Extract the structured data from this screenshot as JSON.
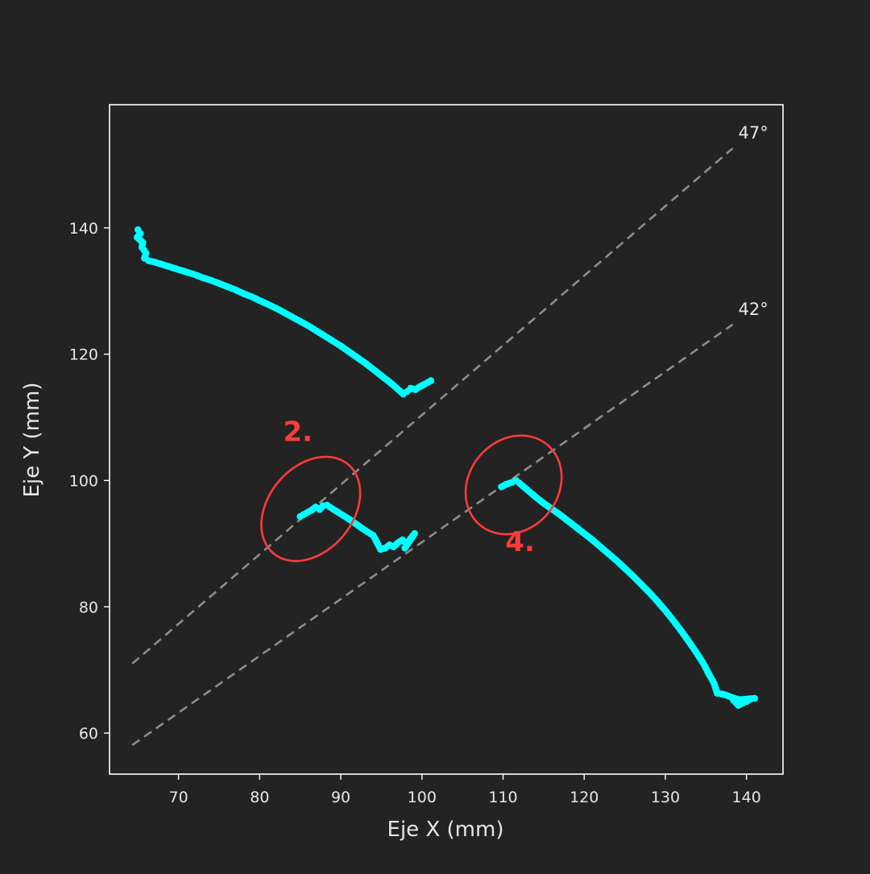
{
  "colors": {
    "background": "#232323",
    "frame": "#ffffff",
    "series": "#00ffff",
    "reference_line": "#8c8c8c",
    "annotation": "#ff3b3b",
    "text": "#e6e6e6"
  },
  "chart_data": {
    "type": "scatter",
    "title": "",
    "xlabel": "Eje X (mm)",
    "ylabel": "Eje Y (mm)",
    "xlim": [
      61.5,
      144.5
    ],
    "ylim": [
      53.5,
      159.5
    ],
    "xticks": [
      70,
      80,
      90,
      100,
      110,
      120,
      130,
      140
    ],
    "yticks": [
      60,
      80,
      100,
      120,
      140
    ],
    "grid": false,
    "legend": "none",
    "marker_color": "#00ffff",
    "series": [
      {
        "points": [
          [
            65.0,
            139.7
          ],
          [
            65.3,
            139.1
          ],
          [
            64.9,
            138.5
          ],
          [
            65.6,
            137.7
          ],
          [
            65.5,
            136.9
          ],
          [
            66.0,
            136.0
          ],
          [
            65.8,
            135.2
          ],
          [
            66.3,
            134.8
          ],
          [
            67.0,
            134.6
          ],
          [
            68.0,
            134.2
          ],
          [
            69.0,
            133.8
          ],
          [
            70.0,
            133.4
          ],
          [
            71.0,
            133.0
          ],
          [
            72.0,
            132.6
          ],
          [
            73.0,
            132.1
          ],
          [
            74.0,
            131.7
          ],
          [
            75.0,
            131.2
          ],
          [
            76.0,
            130.7
          ],
          [
            77.0,
            130.2
          ],
          [
            78.0,
            129.6
          ],
          [
            79.0,
            129.1
          ],
          [
            80.0,
            128.5
          ],
          [
            81.0,
            127.9
          ],
          [
            82.0,
            127.3
          ],
          [
            83.0,
            126.6
          ],
          [
            84.0,
            125.9
          ],
          [
            85.0,
            125.2
          ],
          [
            86.0,
            124.5
          ],
          [
            87.0,
            123.7
          ],
          [
            88.0,
            122.9
          ],
          [
            89.0,
            122.1
          ],
          [
            90.0,
            121.3
          ],
          [
            91.0,
            120.4
          ],
          [
            92.0,
            119.5
          ],
          [
            93.0,
            118.6
          ],
          [
            94.0,
            117.6
          ],
          [
            95.0,
            116.6
          ],
          [
            96.0,
            115.6
          ],
          [
            97.0,
            114.5
          ],
          [
            97.7,
            113.7
          ],
          [
            98.2,
            114.1
          ],
          [
            98.6,
            114.6
          ],
          [
            99.2,
            114.4
          ],
          [
            99.8,
            114.9
          ],
          [
            100.4,
            115.3
          ],
          [
            101.1,
            115.8
          ]
        ]
      },
      {
        "points": [
          [
            85.0,
            94.3
          ],
          [
            85.7,
            94.8
          ],
          [
            86.4,
            95.3
          ],
          [
            86.9,
            95.8
          ],
          [
            87.4,
            95.4
          ],
          [
            87.8,
            96.0
          ],
          [
            88.3,
            96.1
          ],
          [
            89.0,
            95.5
          ],
          [
            90.0,
            94.7
          ],
          [
            91.0,
            93.9
          ],
          [
            92.0,
            93.0
          ],
          [
            93.0,
            92.1
          ],
          [
            94.0,
            91.3
          ],
          [
            94.9,
            89.1
          ],
          [
            95.5,
            89.3
          ],
          [
            96.0,
            89.8
          ],
          [
            96.5,
            89.5
          ],
          [
            97.0,
            90.1
          ],
          [
            97.6,
            90.6
          ],
          [
            98.1,
            90.0
          ],
          [
            98.6,
            90.8
          ],
          [
            99.1,
            91.6
          ],
          [
            97.9,
            89.3
          ]
        ]
      },
      {
        "points": [
          [
            109.8,
            99.0
          ],
          [
            110.4,
            99.4
          ],
          [
            111.1,
            99.7
          ],
          [
            111.6,
            100.0
          ],
          [
            112.0,
            99.6
          ],
          [
            113.0,
            98.5
          ],
          [
            114.0,
            97.4
          ],
          [
            115.0,
            96.4
          ],
          [
            116.0,
            95.5
          ],
          [
            117.0,
            94.6
          ],
          [
            118.0,
            93.6
          ],
          [
            119.0,
            92.6
          ],
          [
            120.0,
            91.6
          ],
          [
            121.0,
            90.6
          ],
          [
            122.0,
            89.5
          ],
          [
            123.0,
            88.4
          ],
          [
            124.0,
            87.3
          ],
          [
            125.0,
            86.1
          ],
          [
            126.0,
            84.9
          ],
          [
            127.0,
            83.6
          ],
          [
            128.0,
            82.3
          ],
          [
            129.0,
            80.9
          ],
          [
            130.0,
            79.4
          ],
          [
            131.0,
            77.8
          ],
          [
            132.0,
            76.1
          ],
          [
            133.0,
            74.3
          ],
          [
            134.0,
            72.4
          ],
          [
            134.7,
            71.0
          ],
          [
            135.3,
            69.5
          ],
          [
            136.0,
            67.9
          ],
          [
            136.4,
            66.3
          ],
          [
            136.9,
            66.2
          ],
          [
            137.5,
            66.0
          ],
          [
            138.1,
            65.7
          ],
          [
            138.8,
            65.4
          ],
          [
            139.4,
            65.2
          ],
          [
            140.0,
            65.0
          ],
          [
            140.5,
            65.4
          ],
          [
            139.0,
            64.4
          ],
          [
            138.4,
            65.2
          ],
          [
            141.0,
            65.5
          ]
        ]
      }
    ],
    "reference_lines": [
      {
        "label": "47°",
        "x": [
          64.3,
          138.3
        ],
        "y": [
          71.0,
          152.6
        ]
      },
      {
        "label": "42°",
        "x": [
          64.3,
          138.3
        ],
        "y": [
          58.1,
          124.7
        ]
      }
    ],
    "annotations": [
      {
        "label": "2.",
        "ellipse_center": [
          86.3,
          95.5
        ],
        "ellipse_radius_data": [
          5.2,
          9.2
        ],
        "rotation_deg": 40
      },
      {
        "label": "4.",
        "ellipse_center": [
          111.3,
          99.3
        ],
        "ellipse_radius_data": [
          5.5,
          8.3
        ],
        "rotation_deg": 40
      }
    ]
  }
}
